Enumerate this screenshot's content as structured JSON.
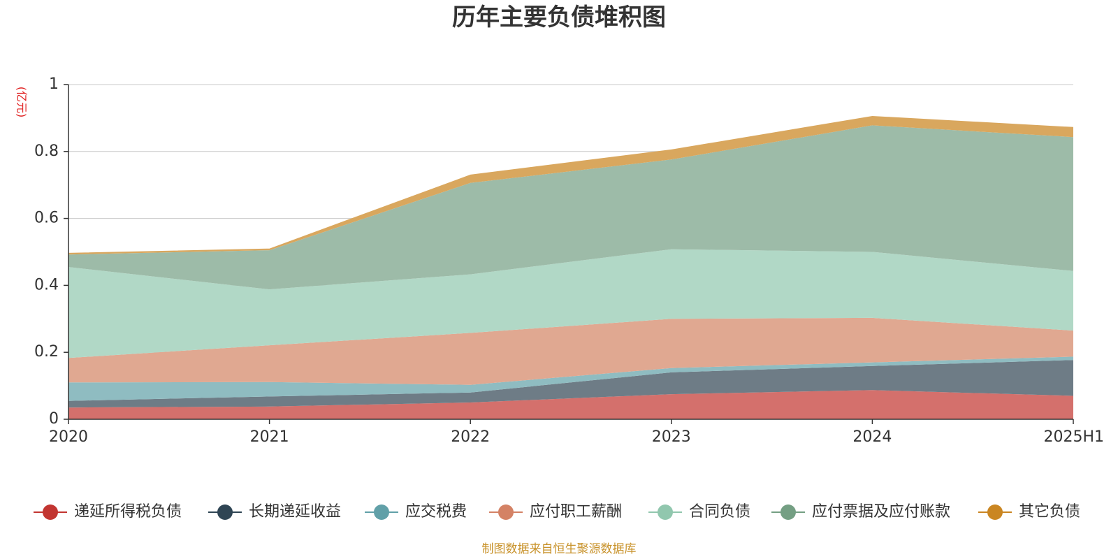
{
  "chart_data": {
    "type": "area",
    "stacked": true,
    "title": "历年主要负债堆积图",
    "ylabel": "(亿元)",
    "xlabel": "",
    "categories": [
      "2020",
      "2021",
      "2022",
      "2023",
      "2024",
      "2025H1"
    ],
    "ylim": [
      0,
      1
    ],
    "yticks": [
      "0",
      "0.2",
      "0.4",
      "0.6",
      "0.8",
      "1"
    ],
    "grid": true,
    "legend_position": "bottom",
    "series": [
      {
        "name": "递延所得税负债",
        "color": "#c23531",
        "fill": "#d4706c",
        "values": [
          0.035,
          0.038,
          0.05,
          0.075,
          0.087,
          0.07
        ]
      },
      {
        "name": "长期递延收益",
        "color": "#2f4554",
        "fill": "#6e7c86",
        "values": [
          0.02,
          0.03,
          0.03,
          0.065,
          0.072,
          0.107
        ]
      },
      {
        "name": "应交税费",
        "color": "#61a0a8",
        "fill": "#8fbcc1",
        "values": [
          0.055,
          0.043,
          0.023,
          0.013,
          0.011,
          0.01
        ]
      },
      {
        "name": "应付职工薪酬",
        "color": "#d48265",
        "fill": "#e0a891",
        "values": [
          0.073,
          0.11,
          0.155,
          0.147,
          0.133,
          0.078
        ]
      },
      {
        "name": "合同负债",
        "color": "#91c7ae",
        "fill": "#b1d8c6",
        "values": [
          0.272,
          0.167,
          0.175,
          0.208,
          0.197,
          0.178
        ]
      },
      {
        "name": "应付票据及应付账款",
        "color": "#749f83",
        "fill": "#9dbba8",
        "values": [
          0.037,
          0.117,
          0.273,
          0.268,
          0.378,
          0.4
        ]
      },
      {
        "name": "其它负债",
        "color": "#ca8622",
        "fill": "#d9a75e",
        "values": [
          0.005,
          0.005,
          0.025,
          0.03,
          0.028,
          0.03
        ]
      }
    ],
    "source": "制图数据来自恒生聚源数据库"
  }
}
